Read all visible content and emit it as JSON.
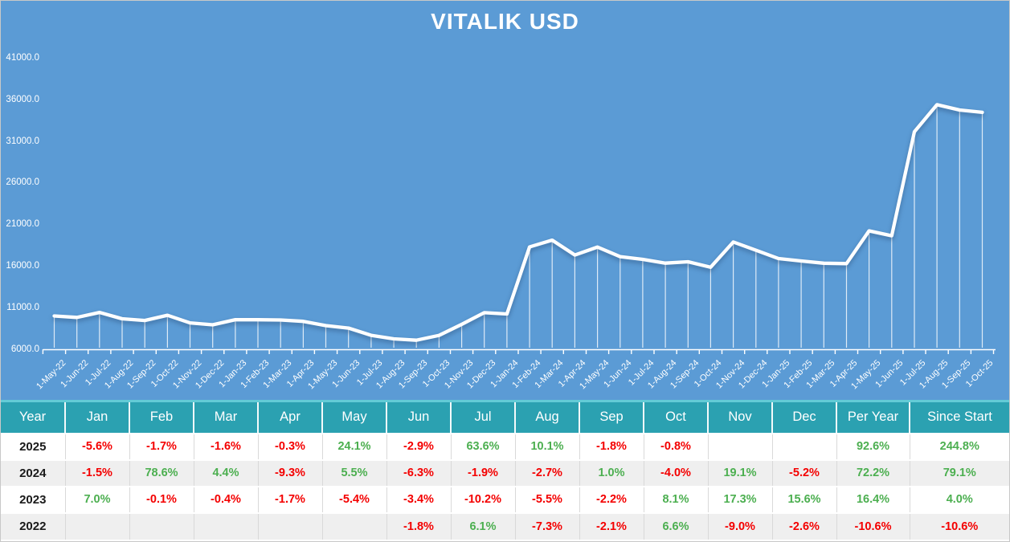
{
  "title": "VITALIK USD",
  "colors": {
    "chart_bg": "#5B9BD5",
    "line": "#FFFFFF",
    "header_bg": "#2BA1B1",
    "header_top_strip": "#63CBD6",
    "row_alt_bg": "#EFEFEF",
    "positive": "#4CAF50",
    "negative": "#F40000",
    "cell_separator": "#D9D9D9"
  },
  "chart_data": {
    "type": "line",
    "title": "VITALIK USD",
    "x": [
      "1-May-22",
      "1-Jun-22",
      "1-Jul-22",
      "1-Aug-22",
      "1-Sep-22",
      "1-Oct-22",
      "1-Nov-22",
      "1-Dec-22",
      "1-Jan-23",
      "1-Feb-23",
      "1-Mar-23",
      "1-Apr-23",
      "1-May-23",
      "1-Jun-23",
      "1-Jul-23",
      "1-Aug-23",
      "1-Sep-23",
      "1-Oct-23",
      "1-Nov-23",
      "1-Dec-23",
      "1-Jan-24",
      "1-Feb-24",
      "1-Mar-24",
      "1-Apr-24",
      "1-May-24",
      "1-Jun-24",
      "1-Jul-24",
      "1-Aug-24",
      "1-Sep-24",
      "1-Oct-24",
      "1-Nov-24",
      "1-Dec-24",
      "1-Jan-25",
      "1-Feb-25",
      "1-Mar-25",
      "1-Apr-25",
      "1-May-25",
      "1-Jun-25",
      "1-Jul-25",
      "1-Aug-25",
      "1-Sep-25",
      "1-Oct-25"
    ],
    "values": [
      10000,
      9820,
      10419,
      9658,
      9456,
      10080,
      9172,
      8934,
      9559,
      9550,
      9512,
      9350,
      8845,
      8544,
      7673,
      7251,
      7091,
      7666,
      8992,
      10395,
      10239,
      18286,
      19091,
      17315,
      18268,
      17117,
      16792,
      16338,
      16502,
      15842,
      18867,
      17886,
      16885,
      16598,
      16332,
      16283,
      20207,
      19621,
      32100,
      35343,
      34706,
      34429
    ],
    "y_tick_labels": [
      "41000.0",
      "36000.0",
      "31000.0",
      "26000.0",
      "21000.0",
      "16000.0",
      "11000.0",
      "6000.0"
    ],
    "y_tick_values": [
      41000,
      36000,
      31000,
      26000,
      21000,
      16000,
      11000,
      6000
    ],
    "ylim": [
      6000,
      43000
    ],
    "grid": false,
    "legend": "none",
    "line_color": "#FFFFFF",
    "drop_lines": true
  },
  "table": {
    "columns": [
      "Year",
      "Jan",
      "Feb",
      "Mar",
      "Apr",
      "May",
      "Jun",
      "Jul",
      "Aug",
      "Sep",
      "Oct",
      "Nov",
      "Dec",
      "Per Year",
      "Since Start"
    ],
    "rows": [
      {
        "year": "2025",
        "cells": [
          "-5.6%",
          "-1.7%",
          "-1.6%",
          "-0.3%",
          "24.1%",
          "-2.9%",
          "63.6%",
          "10.1%",
          "-1.8%",
          "-0.8%",
          "",
          "",
          "92.6%",
          "244.8%"
        ]
      },
      {
        "year": "2024",
        "cells": [
          "-1.5%",
          "78.6%",
          "4.4%",
          "-9.3%",
          "5.5%",
          "-6.3%",
          "-1.9%",
          "-2.7%",
          "1.0%",
          "-4.0%",
          "19.1%",
          "-5.2%",
          "72.2%",
          "79.1%"
        ]
      },
      {
        "year": "2023",
        "cells": [
          "7.0%",
          "-0.1%",
          "-0.4%",
          "-1.7%",
          "-5.4%",
          "-3.4%",
          "-10.2%",
          "-5.5%",
          "-2.2%",
          "8.1%",
          "17.3%",
          "15.6%",
          "16.4%",
          "4.0%"
        ]
      },
      {
        "year": "2022",
        "cells": [
          "",
          "",
          "",
          "",
          "",
          "-1.8%",
          "6.1%",
          "-7.3%",
          "-2.1%",
          "6.6%",
          "-9.0%",
          "-2.6%",
          "-10.6%",
          "-10.6%"
        ]
      }
    ]
  }
}
